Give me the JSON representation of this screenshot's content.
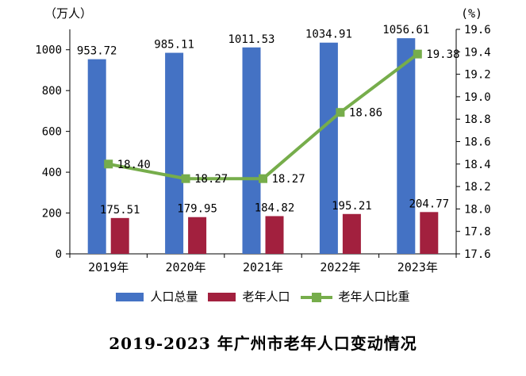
{
  "chart_data": {
    "type": "bar",
    "title": "2019-2023 年广州市老年人口变动情况",
    "categories": [
      "2019年",
      "2020年",
      "2021年",
      "2022年",
      "2023年"
    ],
    "series": [
      {
        "key": "total-population",
        "name": "人口总量",
        "type": "bar",
        "axis": "left",
        "color": "#4472C4",
        "values": [
          953.72,
          985.11,
          1011.53,
          1034.91,
          1056.61
        ]
      },
      {
        "key": "elderly-population",
        "name": "老年人口",
        "type": "bar",
        "axis": "left",
        "color": "#A2203E",
        "values": [
          175.51,
          179.95,
          184.82,
          195.21,
          204.77
        ]
      },
      {
        "key": "elderly-ratio",
        "name": "老年人口比重",
        "type": "line",
        "axis": "right",
        "color": "#76AD4B",
        "values": [
          18.4,
          18.27,
          18.27,
          18.86,
          19.38
        ]
      }
    ],
    "left_axis": {
      "label": "（万人）",
      "min": 0,
      "max": 1100,
      "ticks": [
        0,
        200,
        400,
        600,
        800,
        1000
      ]
    },
    "right_axis": {
      "label": "(%)",
      "min": 17.6,
      "max": 19.6,
      "ticks": [
        17.6,
        17.8,
        18.0,
        18.2,
        18.4,
        18.6,
        18.8,
        19.0,
        19.2,
        19.4,
        19.6
      ]
    },
    "legend_position": "bottom",
    "grid": false,
    "data_labels": true
  }
}
